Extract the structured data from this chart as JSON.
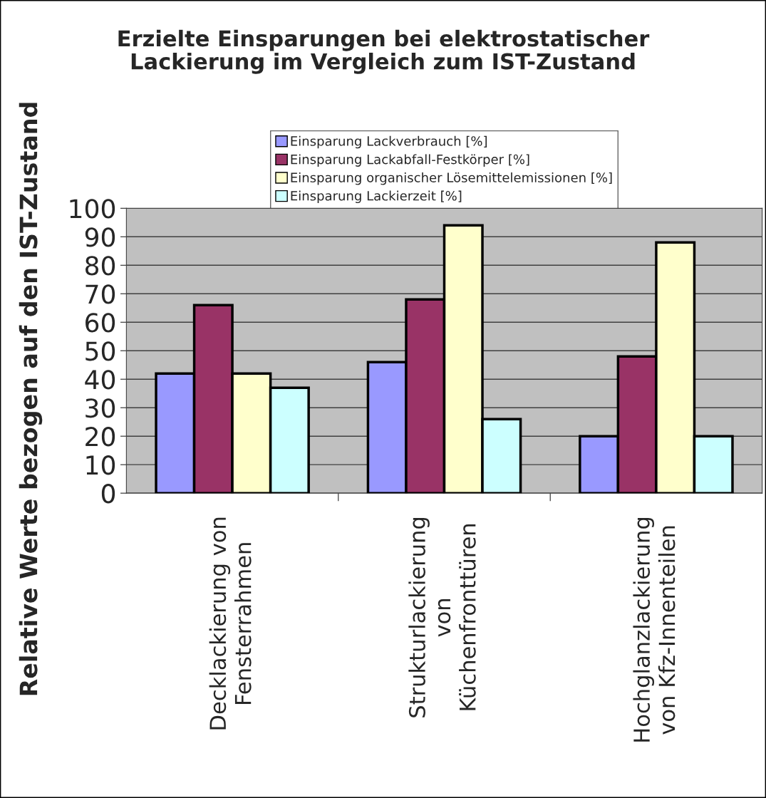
{
  "chart_data": {
    "type": "bar",
    "title": "Erzielte Einsparungen bei elektrostatischer\nLackierung im Vergleich zum IST-Zustand",
    "ylabel": "Relative Werte bezogen auf den IST-Zustand",
    "categories": [
      "Decklackierung von\nFensterrahmen",
      "Strukturlackierung\nvon\nKüchenfronttüren",
      "Hochglanzlackierung\nvon Kfz-Innenteilen"
    ],
    "series": [
      {
        "name": "Einsparung Lackverbrauch [%]",
        "color": "#9999ff",
        "values": [
          42,
          46,
          20
        ]
      },
      {
        "name": "Einsparung Lackabfall-Festkörper [%]",
        "color": "#993366",
        "values": [
          66,
          68,
          48
        ]
      },
      {
        "name": "Einsparung organischer Lösemittelemissionen [%]",
        "color": "#ffffcc",
        "values": [
          42,
          94,
          88
        ]
      },
      {
        "name": "Einsparung Lackierzeit [%]",
        "color": "#ccffff",
        "values": [
          37,
          26,
          20
        ]
      }
    ],
    "ylim": [
      0,
      100
    ],
    "yticks": [
      0,
      10,
      20,
      30,
      40,
      50,
      60,
      70,
      80,
      90,
      100
    ],
    "grid": "y",
    "legend": "top"
  }
}
